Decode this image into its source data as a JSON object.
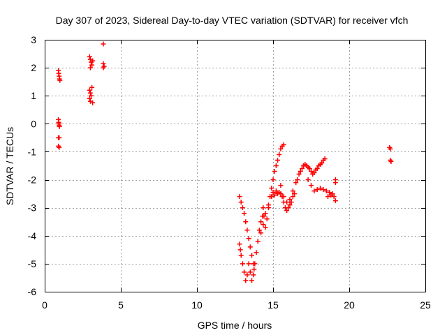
{
  "chart_data": {
    "type": "scatter",
    "title": "Day 307 of 2023, Sidereal Day-to-day VTEC variation (SDTVAR) for receiver vfch",
    "xlabel": "GPS time / hours",
    "ylabel": "SDTVAR / TECUs",
    "xlim": [
      0,
      25
    ],
    "ylim": [
      -6,
      3
    ],
    "xticks": [
      0,
      5,
      10,
      15,
      20,
      25
    ],
    "yticks": [
      -6,
      -5,
      -4,
      -3,
      -2,
      -1,
      0,
      1,
      2,
      3
    ],
    "grid": true,
    "marker": "plus",
    "color": "#ff0000",
    "series": [
      {
        "points": [
          [
            0.9,
            1.9
          ],
          [
            0.92,
            1.8
          ],
          [
            0.95,
            1.7
          ],
          [
            0.97,
            1.6
          ],
          [
            1.0,
            1.55
          ],
          [
            0.9,
            0.15
          ],
          [
            0.92,
            0.05
          ],
          [
            0.95,
            -0.05
          ],
          [
            0.97,
            -0.1
          ],
          [
            0.93,
            0.0
          ],
          [
            0.9,
            -0.5
          ],
          [
            0.95,
            -0.5
          ],
          [
            0.9,
            -0.8
          ],
          [
            0.95,
            -0.85
          ],
          [
            2.95,
            2.4
          ],
          [
            3.0,
            2.3
          ],
          [
            3.05,
            2.2
          ],
          [
            3.1,
            2.1
          ],
          [
            3.0,
            2.0
          ],
          [
            3.15,
            2.25
          ],
          [
            2.95,
            1.2
          ],
          [
            3.0,
            1.1
          ],
          [
            3.05,
            1.0
          ],
          [
            2.95,
            0.9
          ],
          [
            3.1,
            1.3
          ],
          [
            3.0,
            0.8
          ],
          [
            3.15,
            0.75
          ],
          [
            3.85,
            2.85
          ],
          [
            3.85,
            2.15
          ],
          [
            3.9,
            2.05
          ],
          [
            3.85,
            2.0
          ],
          [
            12.8,
            -2.6
          ],
          [
            12.9,
            -2.8
          ],
          [
            13.0,
            -3.0
          ],
          [
            13.1,
            -3.2
          ],
          [
            13.2,
            -3.5
          ],
          [
            13.3,
            -3.8
          ],
          [
            13.4,
            -4.1
          ],
          [
            13.5,
            -4.4
          ],
          [
            13.6,
            -4.7
          ],
          [
            13.7,
            -5.0
          ],
          [
            13.75,
            -5.2
          ],
          [
            12.8,
            -4.3
          ],
          [
            12.85,
            -4.5
          ],
          [
            12.9,
            -4.7
          ],
          [
            13.0,
            -5.0
          ],
          [
            13.1,
            -5.3
          ],
          [
            13.2,
            -5.6
          ],
          [
            13.3,
            -5.4
          ],
          [
            13.4,
            -5.0
          ],
          [
            13.5,
            -5.3
          ],
          [
            13.6,
            -5.6
          ],
          [
            13.7,
            -5.4
          ],
          [
            13.8,
            -5.0
          ],
          [
            13.9,
            -4.6
          ],
          [
            14.0,
            -4.2
          ],
          [
            14.1,
            -3.8
          ],
          [
            14.2,
            -3.5
          ],
          [
            14.3,
            -3.3
          ],
          [
            14.35,
            -3.0
          ],
          [
            14.4,
            -3.3
          ],
          [
            14.5,
            -3.7
          ],
          [
            14.6,
            -3.4
          ],
          [
            14.7,
            -3.0
          ],
          [
            14.8,
            -2.6
          ],
          [
            14.9,
            -2.3
          ],
          [
            15.0,
            -2.0
          ],
          [
            15.1,
            -1.7
          ],
          [
            15.2,
            -1.5
          ],
          [
            15.3,
            -1.3
          ],
          [
            15.4,
            -1.1
          ],
          [
            15.5,
            -0.9
          ],
          [
            15.6,
            -0.8
          ],
          [
            15.7,
            -0.75
          ],
          [
            14.2,
            -3.9
          ],
          [
            14.35,
            -3.6
          ],
          [
            14.5,
            -3.2
          ],
          [
            14.7,
            -2.9
          ],
          [
            14.9,
            -2.6
          ],
          [
            15.0,
            -2.45
          ],
          [
            15.1,
            -2.55
          ],
          [
            15.2,
            -2.4
          ],
          [
            15.3,
            -2.5
          ],
          [
            15.4,
            -2.45
          ],
          [
            15.5,
            -2.5
          ],
          [
            15.6,
            -2.6
          ],
          [
            15.7,
            -2.8
          ],
          [
            15.8,
            -3.0
          ],
          [
            15.9,
            -3.1
          ],
          [
            16.0,
            -3.0
          ],
          [
            16.1,
            -2.9
          ],
          [
            16.2,
            -2.8
          ],
          [
            16.3,
            -2.6
          ],
          [
            16.4,
            -2.5
          ],
          [
            15.5,
            -2.2
          ],
          [
            15.7,
            -2.6
          ],
          [
            15.9,
            -2.8
          ],
          [
            16.1,
            -2.7
          ],
          [
            16.3,
            -2.4
          ],
          [
            16.5,
            -2.1
          ],
          [
            16.6,
            -2.0
          ],
          [
            16.7,
            -1.8
          ],
          [
            16.8,
            -1.7
          ],
          [
            16.9,
            -1.6
          ],
          [
            17.0,
            -1.5
          ],
          [
            17.1,
            -1.45
          ],
          [
            17.2,
            -1.5
          ],
          [
            17.3,
            -1.55
          ],
          [
            17.4,
            -1.6
          ],
          [
            17.5,
            -1.7
          ],
          [
            17.6,
            -1.8
          ],
          [
            17.7,
            -1.75
          ],
          [
            17.8,
            -1.65
          ],
          [
            17.9,
            -1.6
          ],
          [
            18.0,
            -1.5
          ],
          [
            18.1,
            -1.45
          ],
          [
            18.2,
            -1.4
          ],
          [
            18.3,
            -1.3
          ],
          [
            18.4,
            -1.25
          ],
          [
            17.3,
            -2.0
          ],
          [
            17.5,
            -2.2
          ],
          [
            17.7,
            -2.4
          ],
          [
            17.9,
            -2.35
          ],
          [
            18.1,
            -2.3
          ],
          [
            18.3,
            -2.35
          ],
          [
            18.5,
            -2.4
          ],
          [
            18.7,
            -2.45
          ],
          [
            18.9,
            -2.5
          ],
          [
            19.0,
            -2.6
          ],
          [
            19.1,
            -2.75
          ],
          [
            19.1,
            -2.0
          ],
          [
            19.1,
            -2.1
          ],
          [
            18.8,
            -2.55
          ],
          [
            18.6,
            -2.6
          ],
          [
            22.65,
            -0.85
          ],
          [
            22.7,
            -0.9
          ],
          [
            22.7,
            -1.3
          ],
          [
            22.75,
            -1.35
          ]
        ]
      }
    ]
  }
}
